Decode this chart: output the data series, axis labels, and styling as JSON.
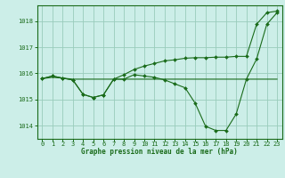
{
  "title": "Graphe pression niveau de la mer (hPa)",
  "bg_color": "#cceee8",
  "grid_color": "#99ccbb",
  "line_color": "#1a6b1a",
  "marker_color": "#1a6b1a",
  "xlim": [
    -0.5,
    23.5
  ],
  "ylim": [
    1013.5,
    1018.6
  ],
  "yticks": [
    1014,
    1015,
    1016,
    1017,
    1018
  ],
  "xticks": [
    0,
    1,
    2,
    3,
    4,
    5,
    6,
    7,
    8,
    9,
    10,
    11,
    12,
    13,
    14,
    15,
    16,
    17,
    18,
    19,
    20,
    21,
    22,
    23
  ],
  "series0": [
    1015.8,
    1015.85,
    1015.82,
    1015.78,
    1015.78,
    1015.78,
    1015.78,
    1015.78,
    1015.78,
    1015.78,
    1015.78,
    1015.78,
    1015.78,
    1015.78,
    1015.78,
    1015.78,
    1015.78,
    1015.78,
    1015.78,
    1015.78,
    1015.78,
    1015.78,
    1015.78,
    1015.78
  ],
  "series1": [
    1015.8,
    1015.9,
    1015.82,
    1015.75,
    1015.2,
    1015.08,
    1015.18,
    1015.78,
    1015.78,
    1015.95,
    1015.9,
    1015.85,
    1015.75,
    1015.6,
    1015.45,
    1014.85,
    1013.98,
    1013.82,
    1013.82,
    1014.45,
    1015.78,
    1016.55,
    1017.88,
    1018.32
  ],
  "series2": [
    1015.8,
    1015.9,
    1015.82,
    1015.75,
    1015.2,
    1015.08,
    1015.18,
    1015.78,
    1015.95,
    1016.15,
    1016.28,
    1016.38,
    1016.48,
    1016.52,
    1016.58,
    1016.6,
    1016.6,
    1016.62,
    1016.62,
    1016.65,
    1016.65,
    1017.88,
    1018.32,
    1018.38
  ]
}
